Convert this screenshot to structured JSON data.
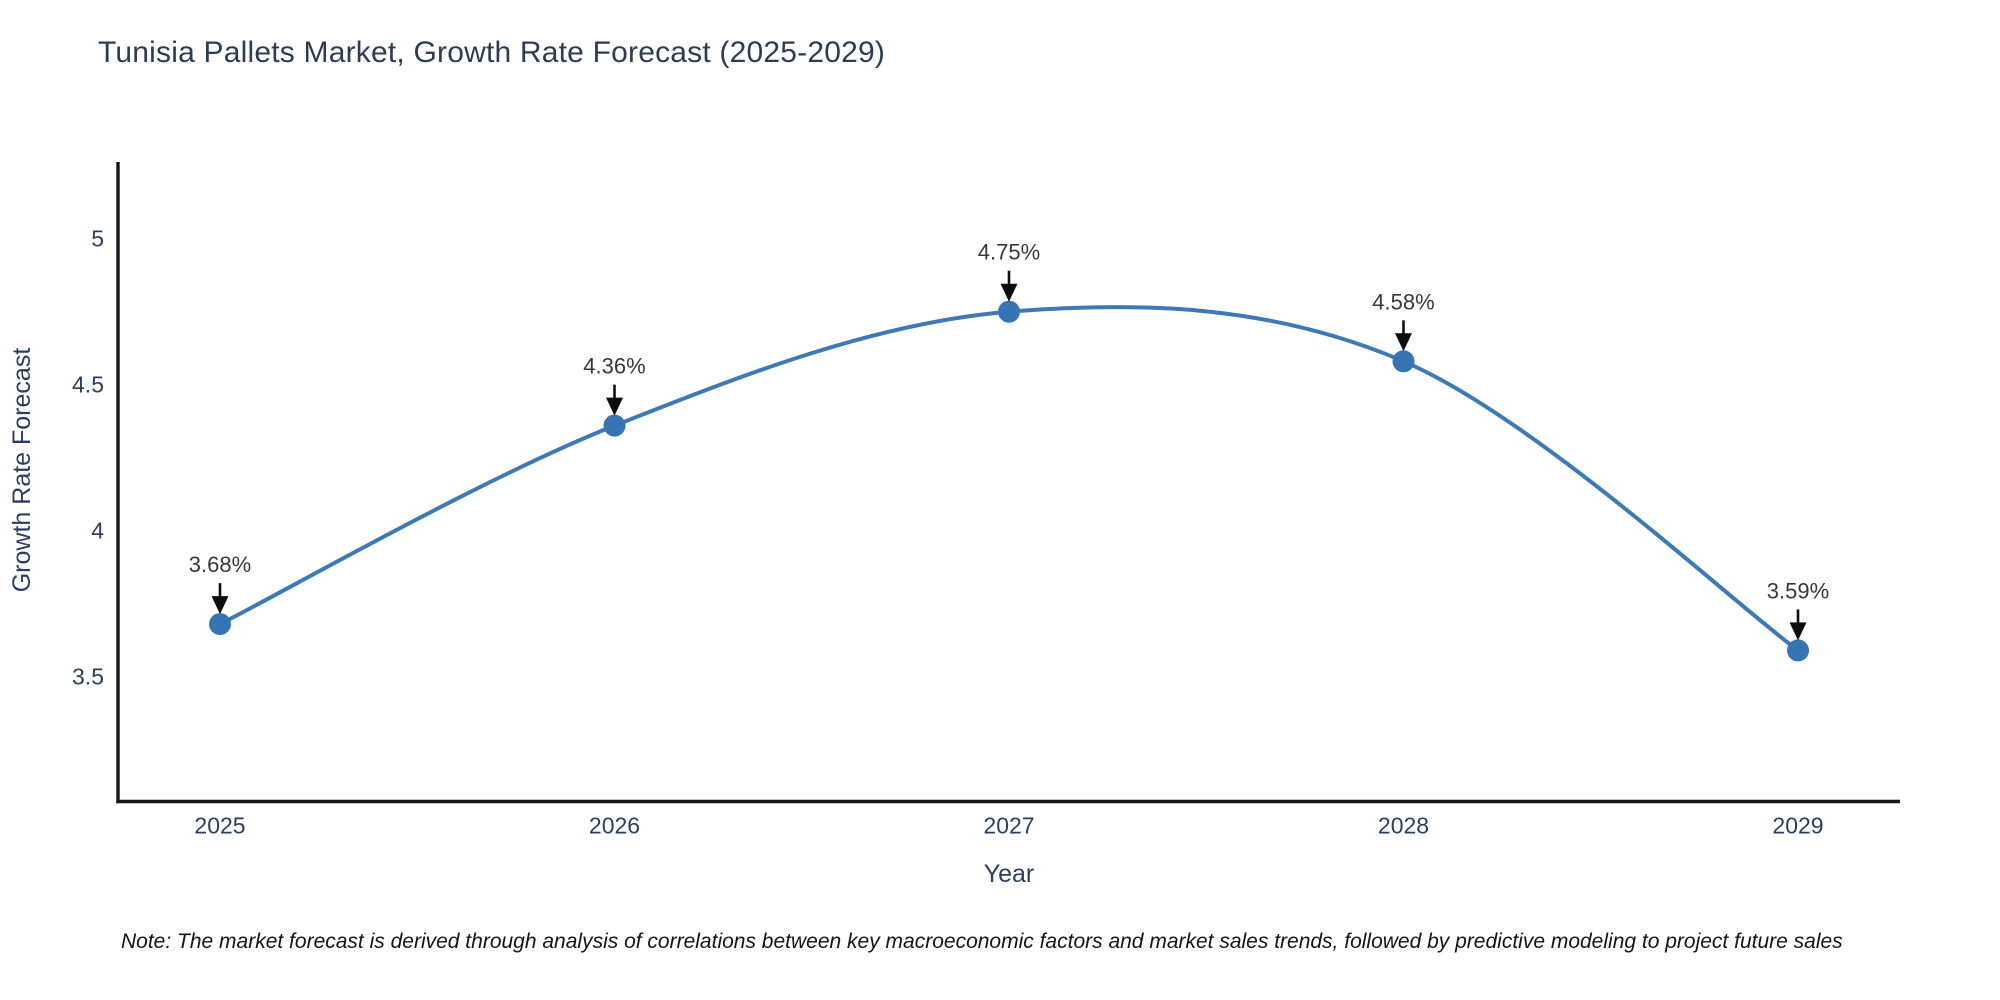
{
  "chart_data": {
    "type": "line",
    "title": "Tunisia Pallets Market, Growth Rate Forecast (2025-2029)",
    "xlabel": "Year",
    "ylabel": "Growth Rate Forecast",
    "x": [
      2025,
      2026,
      2027,
      2028,
      2029
    ],
    "series": [
      {
        "name": "Growth Rate Forecast",
        "values": [
          3.68,
          4.36,
          4.75,
          4.58,
          3.59
        ]
      }
    ],
    "point_labels": [
      "3.68%",
      "4.36%",
      "4.75%",
      "4.58%",
      "3.59%"
    ],
    "x_tick_labels": [
      "2025",
      "2026",
      "2027",
      "2028",
      "2029"
    ],
    "y_tick_values": [
      3.5,
      4,
      4.5,
      5
    ],
    "y_tick_labels": [
      "3.5",
      "4",
      "4.5",
      "5"
    ],
    "xlim": [
      2024.74,
      2029.26
    ],
    "ylim": [
      3.07,
      5.26
    ],
    "line_shape": "spline",
    "grid": false,
    "legend_position": "none",
    "colors": {
      "line": "#3d7ab5",
      "marker": "#3674b4",
      "axis": "#161616",
      "tick_label": "#2a3f5f",
      "axis_title": "#2a3f5f",
      "chart_title": "#2b3d54",
      "annotation_text": "#383838",
      "annotation_arrow": "#0d0d0d"
    }
  },
  "note": {
    "text": "Note: The market forecast is derived through analysis of correlations between key macroeconomic factors and market sales trends, followed by predictive modeling to project future sales"
  }
}
